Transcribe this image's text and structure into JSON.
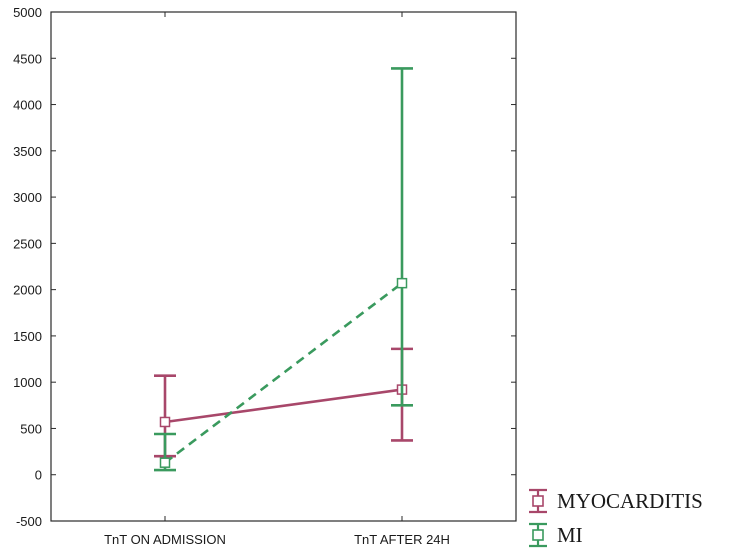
{
  "chart_data": {
    "type": "line",
    "title": "",
    "xlabel": "",
    "ylabel": "",
    "categories": [
      "TnT ON ADMISSION",
      "TnT AFTER 24H"
    ],
    "ylim": [
      -500,
      5000
    ],
    "yticks": [
      -500,
      0,
      500,
      1000,
      1500,
      2000,
      2500,
      3000,
      3500,
      4000,
      4500,
      5000
    ],
    "grid": false,
    "legend": "bottom-right",
    "series": [
      {
        "name": "MYOCARDITIS",
        "color": "#a8476a",
        "line_style": "solid",
        "values": [
          570,
          920
        ],
        "error_low": [
          200,
          370
        ],
        "error_high": [
          1070,
          1360
        ]
      },
      {
        "name": "MI",
        "color": "#3a9a5e",
        "line_style": "dashed",
        "values": [
          130,
          2070
        ],
        "error_low": [
          50,
          750
        ],
        "error_high": [
          440,
          4390
        ]
      }
    ]
  }
}
